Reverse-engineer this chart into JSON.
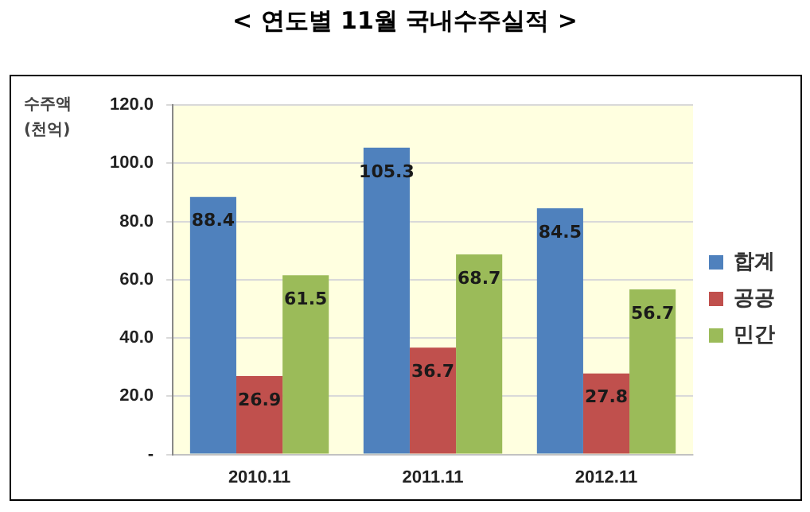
{
  "chart_data": {
    "type": "bar",
    "title": "< 연도별 11월 국내수주실적 >",
    "ylabel": "수주액\n(천억)",
    "categories": [
      "2010.11",
      "2011.11",
      "2012.11"
    ],
    "series": [
      {
        "name": "합계",
        "color": "#4f81bd",
        "values": [
          88.4,
          105.3,
          84.5
        ]
      },
      {
        "name": "공공",
        "color": "#c0504d",
        "values": [
          26.9,
          36.7,
          27.8
        ]
      },
      {
        "name": "민간",
        "color": "#9bbb59",
        "values": [
          61.5,
          68.7,
          56.7
        ]
      }
    ],
    "ylim": [
      0,
      120
    ],
    "yticks": [
      {
        "value": 0,
        "label": "-"
      },
      {
        "value": 20,
        "label": "20.0"
      },
      {
        "value": 40,
        "label": "40.0"
      },
      {
        "value": 60,
        "label": "60.0"
      },
      {
        "value": 80,
        "label": "80.0"
      },
      {
        "value": 100,
        "label": "100.0"
      },
      {
        "value": 120,
        "label": "120.0"
      }
    ],
    "grid": "y",
    "legend": "right",
    "data_labels": true
  }
}
